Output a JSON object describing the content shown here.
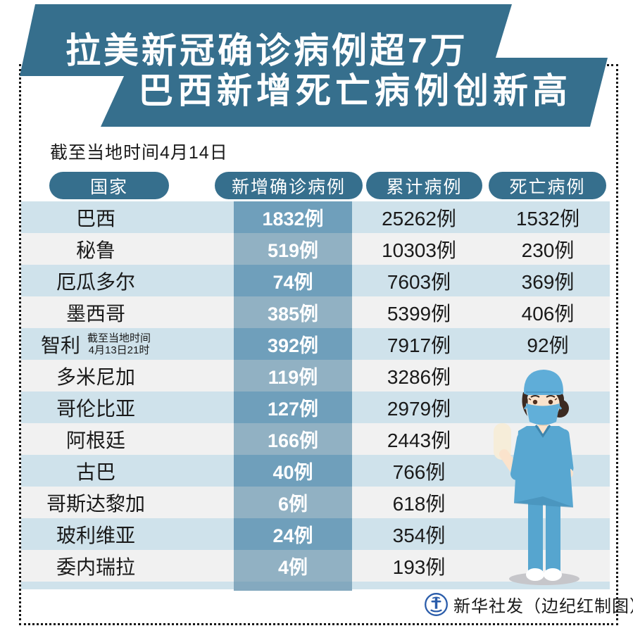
{
  "title": {
    "line1": "拉美新冠确诊病例超7万",
    "line2": "巴西新增死亡病例创新高"
  },
  "date_note": "截至当地时间4月14日",
  "table": {
    "headers": [
      "国家",
      "新增确诊病例",
      "累计病例",
      "死亡病例"
    ],
    "rows": [
      {
        "country": "巴西",
        "new_cases": "1832例",
        "total_cases": "25262例",
        "deaths": "1532例"
      },
      {
        "country": "秘鲁",
        "new_cases": "519例",
        "total_cases": "10303例",
        "deaths": "230例"
      },
      {
        "country": "厄瓜多尔",
        "new_cases": "74例",
        "total_cases": "7603例",
        "deaths": "369例"
      },
      {
        "country": "墨西哥",
        "new_cases": "385例",
        "total_cases": "5399例",
        "deaths": "406例"
      },
      {
        "country": "智利",
        "note_line1": "截至当地时间",
        "note_line2": "4月13日21时",
        "new_cases": "392例",
        "total_cases": "7917例",
        "deaths": "92例"
      },
      {
        "country": "多米尼加",
        "new_cases": "119例",
        "total_cases": "3286例",
        "deaths": ""
      },
      {
        "country": "哥伦比亚",
        "new_cases": "127例",
        "total_cases": "2979例",
        "deaths": ""
      },
      {
        "country": "阿根廷",
        "new_cases": "166例",
        "total_cases": "2443例",
        "deaths": ""
      },
      {
        "country": "古巴",
        "new_cases": "40例",
        "total_cases": "766例",
        "deaths": ""
      },
      {
        "country": "哥斯达黎加",
        "new_cases": "6例",
        "total_cases": "618例",
        "deaths": ""
      },
      {
        "country": "玻利维亚",
        "new_cases": "24例",
        "total_cases": "354例",
        "deaths": ""
      },
      {
        "country": "委内瑞拉",
        "new_cases": "4例",
        "total_cases": "193例",
        "deaths": ""
      }
    ]
  },
  "footer": {
    "credit": "新华社发（边纪红制图）",
    "logo": "xinhua-agency-logo"
  },
  "colors": {
    "banner_teal": "#366f8d",
    "row_blue": "#cfe2eb",
    "row_pale": "#f1f1f1",
    "col2_on_blue": "#6f9fbb",
    "col2_on_pale": "#91b1c3",
    "text_dark": "#1a1a1a",
    "text_white": "#ffffff",
    "logo_blue": "#2a5caa",
    "nurse_scrub_blue": "#58a7d1",
    "nurse_skin": "#fbe3cc"
  },
  "chart_data": {
    "type": "table",
    "title": "拉美新冠确诊病例超7万 巴西新增死亡病例创新高",
    "as_of": "截至当地时间4月14日",
    "unit": "例",
    "columns": [
      "国家",
      "新增确诊病例",
      "累计病例",
      "死亡病例"
    ],
    "rows": [
      [
        "巴西",
        1832,
        25262,
        1532
      ],
      [
        "秘鲁",
        519,
        10303,
        230
      ],
      [
        "厄瓜多尔",
        74,
        7603,
        369
      ],
      [
        "墨西哥",
        385,
        5399,
        406
      ],
      [
        "智利",
        392,
        7917,
        92
      ],
      [
        "多米尼加",
        119,
        3286,
        null
      ],
      [
        "哥伦比亚",
        127,
        2979,
        null
      ],
      [
        "阿根廷",
        166,
        2443,
        null
      ],
      [
        "古巴",
        40,
        766,
        null
      ],
      [
        "哥斯达黎加",
        6,
        618,
        null
      ],
      [
        "玻利维亚",
        24,
        354,
        null
      ],
      [
        "委内瑞拉",
        4,
        193,
        null
      ]
    ],
    "row_notes": {
      "智利": "截至当地时间4月13日21时"
    },
    "credit": "新华社发（边纪红制图）"
  }
}
